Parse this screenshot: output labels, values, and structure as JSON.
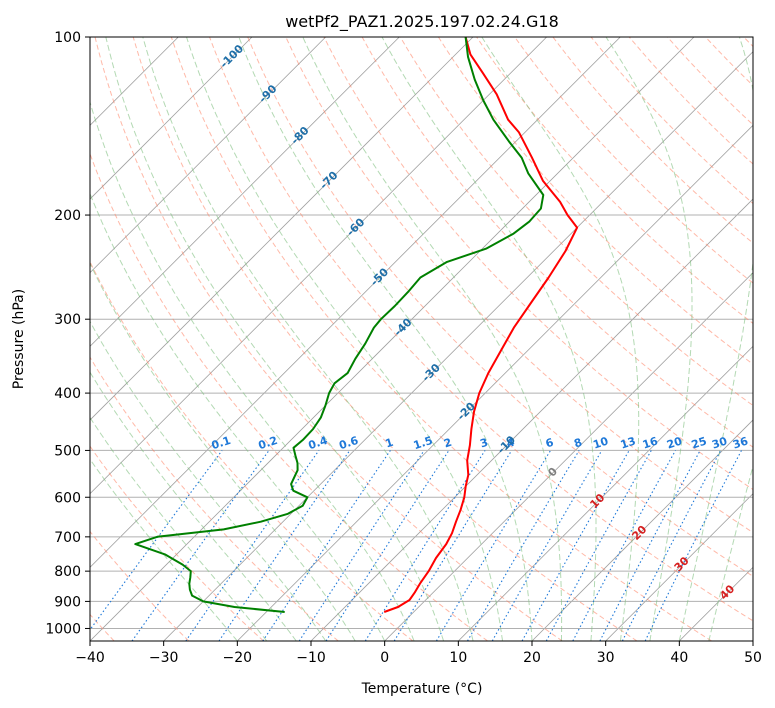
{
  "chart_data": {
    "type": "line",
    "title": "wetPf2_PAZ1.2025.197.02.24.G18",
    "xlabel": "Temperature (°C)",
    "ylabel": "Pressure (hPa)",
    "xlim": [
      -40,
      50
    ],
    "ylim": [
      1050,
      100
    ],
    "y_scale": "log",
    "x_ticks": [
      -40,
      -30,
      -20,
      -10,
      0,
      10,
      20,
      30,
      40,
      50
    ],
    "x_tick_labels": [
      "−40",
      "−30",
      "−20",
      "−10",
      "0",
      "10",
      "20",
      "30",
      "40",
      "50"
    ],
    "y_ticks": [
      100,
      200,
      300,
      400,
      500,
      600,
      700,
      800,
      900,
      1000
    ],
    "y_tick_labels": [
      "100",
      "200",
      "300",
      "400",
      "500",
      "600",
      "700",
      "800",
      "900",
      "1000"
    ],
    "grid": true,
    "series": [
      {
        "role": "temperature",
        "color": "#ff0000",
        "points": [
          [
            -4.0,
            938
          ],
          [
            -2.8,
            920
          ],
          [
            -2.2,
            895
          ],
          [
            -2.5,
            870
          ],
          [
            -3.0,
            840
          ],
          [
            -3.5,
            800
          ],
          [
            -4.3,
            760
          ],
          [
            -4.8,
            720
          ],
          [
            -5.5,
            690
          ],
          [
            -6.5,
            660
          ],
          [
            -7.5,
            630
          ],
          [
            -8.7,
            600
          ],
          [
            -10.0,
            575
          ],
          [
            -11.2,
            550
          ],
          [
            -13.3,
            520
          ],
          [
            -15.0,
            490
          ],
          [
            -17.0,
            460
          ],
          [
            -19.0,
            430
          ],
          [
            -20.8,
            400
          ],
          [
            -22.3,
            370
          ],
          [
            -23.6,
            340
          ],
          [
            -25.0,
            310
          ],
          [
            -26.1,
            280
          ],
          [
            -27.1,
            255
          ],
          [
            -28.4,
            230
          ],
          [
            -30.0,
            210
          ],
          [
            -33.0,
            200
          ],
          [
            -35.8,
            190
          ],
          [
            -41.0,
            175
          ],
          [
            -45.6,
            160
          ],
          [
            -50.8,
            145
          ],
          [
            -54.0,
            138
          ],
          [
            -59.0,
            125
          ],
          [
            -63.8,
            115
          ],
          [
            -68.0,
            107
          ],
          [
            -71.0,
            100
          ]
        ]
      },
      {
        "role": "dewpoint",
        "color": "#008000",
        "points": [
          [
            -17.5,
            938
          ],
          [
            -25.0,
            920
          ],
          [
            -30.0,
            900
          ],
          [
            -32.3,
            880
          ],
          [
            -33.4,
            860
          ],
          [
            -34.3,
            840
          ],
          [
            -35.0,
            820
          ],
          [
            -35.8,
            800
          ],
          [
            -37.8,
            780
          ],
          [
            -41.5,
            750
          ],
          [
            -47.0,
            720
          ],
          [
            -45.0,
            700
          ],
          [
            -37.0,
            680
          ],
          [
            -33.0,
            660
          ],
          [
            -30.4,
            640
          ],
          [
            -29.5,
            620
          ],
          [
            -30.0,
            600
          ],
          [
            -32.8,
            585
          ],
          [
            -34.0,
            570
          ],
          [
            -34.5,
            555
          ],
          [
            -35.0,
            540
          ],
          [
            -36.0,
            525
          ],
          [
            -37.3,
            510
          ],
          [
            -38.6,
            495
          ],
          [
            -38.4,
            480
          ],
          [
            -38.5,
            460
          ],
          [
            -39.0,
            440
          ],
          [
            -40.0,
            420
          ],
          [
            -41.2,
            400
          ],
          [
            -41.8,
            385
          ],
          [
            -41.4,
            370
          ],
          [
            -42.3,
            350
          ],
          [
            -43.0,
            330
          ],
          [
            -44.0,
            310
          ],
          [
            -44.2,
            300
          ],
          [
            -44.1,
            285
          ],
          [
            -44.2,
            270
          ],
          [
            -44.5,
            255
          ],
          [
            -43.0,
            240
          ],
          [
            -39.5,
            228
          ],
          [
            -37.8,
            215
          ],
          [
            -37.3,
            205
          ],
          [
            -37.5,
            195
          ],
          [
            -39.0,
            185
          ],
          [
            -44.0,
            170
          ],
          [
            -47.0,
            160
          ],
          [
            -51.0,
            150
          ],
          [
            -56.0,
            138
          ],
          [
            -60.0,
            128
          ],
          [
            -64.0,
            118
          ],
          [
            -68.0,
            108
          ],
          [
            -71.0,
            100
          ]
        ]
      }
    ],
    "isotherm_labels": [
      {
        "text": "-100",
        "t": -100,
        "p": 108
      },
      {
        "text": "-90",
        "t": -90,
        "p": 125
      },
      {
        "text": "-80",
        "t": -80,
        "p": 147
      },
      {
        "text": "-70",
        "t": -70,
        "p": 175
      },
      {
        "text": "-60",
        "t": -60,
        "p": 210
      },
      {
        "text": "-50",
        "t": -50,
        "p": 255
      },
      {
        "text": "-40",
        "t": -40,
        "p": 310
      },
      {
        "text": "-30",
        "t": -30,
        "p": 370
      },
      {
        "text": "-20",
        "t": -20,
        "p": 430
      },
      {
        "text": "-10",
        "t": -10,
        "p": 490
      },
      {
        "text": "0",
        "t": 0,
        "p": 545
      },
      {
        "text": "10",
        "t": 10,
        "p": 610
      },
      {
        "text": "20",
        "t": 20,
        "p": 690
      },
      {
        "text": "30",
        "t": 30,
        "p": 780
      },
      {
        "text": "40",
        "t": 40,
        "p": 870
      }
    ],
    "mixing_ratio_labels": [
      "0.1",
      "0.2",
      "0.4",
      "0.6",
      "1",
      "1.5",
      "2",
      "3",
      "4",
      "6",
      "8",
      "10",
      "13",
      "16",
      "20",
      "25",
      "30",
      "36"
    ],
    "mixing_ratios": [
      0.1,
      0.2,
      0.4,
      0.6,
      1,
      1.5,
      2,
      3,
      4,
      6,
      8,
      10,
      13,
      16,
      20,
      25,
      30,
      36
    ],
    "colors": {
      "isotherm": "#a0a0a0",
      "dry_adiabat": "#ff8060",
      "moist_adiabat": "#80c080",
      "mixing_ratio": "#1e78d8",
      "isotherm_label_cold": "#1f6fa8",
      "isotherm_label_warm": "#d62020",
      "isotherm_label_zero": "#808080"
    }
  }
}
